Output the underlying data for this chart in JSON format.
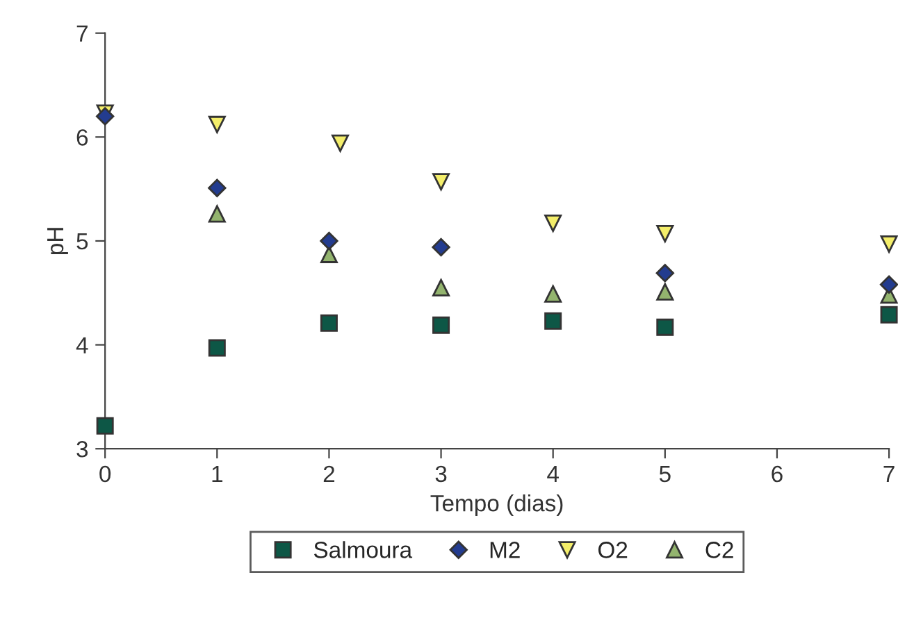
{
  "chart_data": {
    "type": "scatter",
    "xlabel": "Tempo (dias)",
    "ylabel": "pH",
    "xlim": [
      0,
      7
    ],
    "xticks": [
      0,
      1,
      2,
      3,
      4,
      5,
      6,
      7
    ],
    "ylim": [
      3,
      7
    ],
    "yticks": [
      3,
      4,
      5,
      6,
      7
    ],
    "grid": false,
    "legend": "bottom",
    "series": [
      {
        "name": "Salmoura",
        "color": "#0d5746",
        "marker": "square",
        "x": [
          0,
          1,
          2,
          3,
          4,
          5,
          7
        ],
        "values": [
          3.22,
          3.97,
          4.21,
          4.19,
          4.23,
          4.17,
          4.29
        ]
      },
      {
        "name": "M2",
        "color": "#233c8f",
        "marker": "diamond",
        "x": [
          0,
          1,
          2,
          3,
          5,
          7
        ],
        "values": [
          6.2,
          5.51,
          5.0,
          4.94,
          4.69,
          4.58
        ]
      },
      {
        "name": "O2",
        "color": "#f4ee6a",
        "marker": "triangle_down",
        "x": [
          0,
          1,
          2.1,
          3,
          4,
          5,
          7
        ],
        "values": [
          6.23,
          6.12,
          5.94,
          5.57,
          5.17,
          5.07,
          4.97
        ]
      },
      {
        "name": "C2",
        "color": "#93b46e",
        "marker": "triangle",
        "x": [
          1,
          2,
          3,
          4,
          5,
          7
        ],
        "values": [
          5.26,
          4.87,
          4.55,
          4.49,
          4.51,
          4.48
        ]
      }
    ]
  }
}
